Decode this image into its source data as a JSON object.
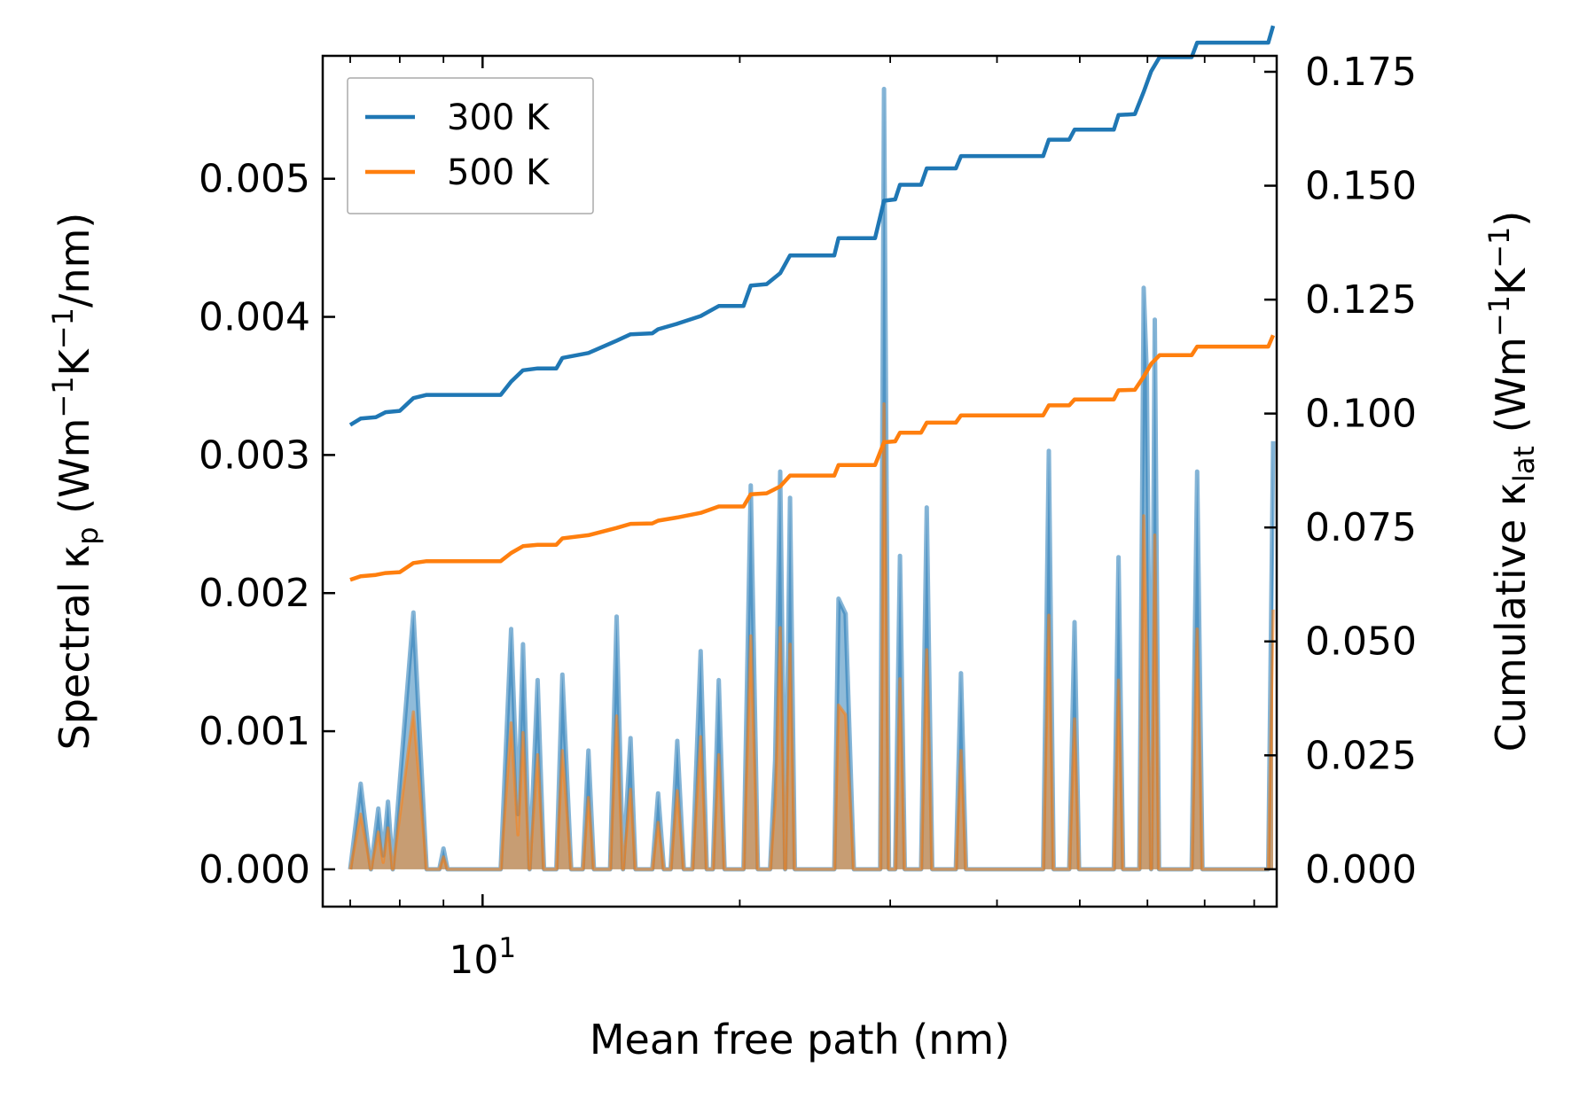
{
  "chart_data": {
    "type": "line",
    "xlabel": "Mean free path (nm)",
    "x_scale": "log",
    "xlim": [
      6.5,
      85
    ],
    "x_tick_labels": [
      {
        "value": 10,
        "base": "10",
        "exp": "1"
      }
    ],
    "y_left": {
      "label_parts": [
        "Spectral κ",
        "p",
        " (Wm",
        "−1",
        "K",
        "−1",
        "/nm)"
      ],
      "ylim": [
        -0.00027,
        0.00589
      ],
      "ticks": [
        "0.000",
        "0.001",
        "0.002",
        "0.003",
        "0.004",
        "0.005"
      ],
      "tick_values": [
        0,
        0.001,
        0.002,
        0.003,
        0.004,
        0.005
      ]
    },
    "y_right": {
      "label_parts": [
        "Cumulative κ",
        "lat",
        " (Wm",
        "−1",
        "K",
        "−1",
        ")"
      ],
      "ylim": [
        -0.0082,
        0.1785
      ],
      "ticks": [
        "0.000",
        "0.025",
        "0.050",
        "0.075",
        "0.100",
        "0.125",
        "0.150",
        "0.175"
      ],
      "tick_values": [
        0,
        0.025,
        0.05,
        0.075,
        0.1,
        0.125,
        0.15,
        0.175
      ]
    },
    "legend": {
      "location": "top-left",
      "entries": [
        {
          "label": "300 K",
          "color": "#1f77b4"
        },
        {
          "label": "500 K",
          "color": "#ff7f0e"
        }
      ]
    },
    "spectral_300K": [
      [
        7.0,
        0
      ],
      [
        7.2,
        0.00062
      ],
      [
        7.4,
        0
      ],
      [
        7.55,
        0.00044
      ],
      [
        7.65,
        0.0001
      ],
      [
        7.75,
        0.00049
      ],
      [
        7.85,
        0
      ],
      [
        8.3,
        0.00186
      ],
      [
        8.6,
        0
      ],
      [
        8.9,
        0
      ],
      [
        9.0,
        0.00015
      ],
      [
        9.1,
        0
      ],
      [
        10.5,
        0
      ],
      [
        10.8,
        0.00174
      ],
      [
        11.0,
        0.0004
      ],
      [
        11.15,
        0.00163
      ],
      [
        11.35,
        0
      ],
      [
        11.6,
        0.00137
      ],
      [
        11.8,
        0
      ],
      [
        12.2,
        0
      ],
      [
        12.4,
        0.00141
      ],
      [
        12.7,
        0
      ],
      [
        13.1,
        0
      ],
      [
        13.3,
        0.00086
      ],
      [
        13.5,
        0
      ],
      [
        14.1,
        0
      ],
      [
        14.35,
        0.00183
      ],
      [
        14.6,
        0
      ],
      [
        14.9,
        0.00095
      ],
      [
        15.1,
        0
      ],
      [
        15.8,
        0
      ],
      [
        16.05,
        0.00055
      ],
      [
        16.3,
        0
      ],
      [
        16.6,
        0
      ],
      [
        16.9,
        0.00093
      ],
      [
        17.2,
        0
      ],
      [
        17.6,
        0
      ],
      [
        18.0,
        0.00158
      ],
      [
        18.3,
        0
      ],
      [
        18.6,
        0
      ],
      [
        18.9,
        0.00137
      ],
      [
        19.2,
        0
      ],
      [
        20.2,
        0
      ],
      [
        20.6,
        0.00278
      ],
      [
        21.0,
        0
      ],
      [
        21.7,
        0
      ],
      [
        22.0,
        0.00079
      ],
      [
        22.3,
        0.00288
      ],
      [
        22.6,
        0
      ],
      [
        22.9,
        0.00269
      ],
      [
        23.2,
        0
      ],
      [
        25.8,
        0
      ],
      [
        26.1,
        0.00196
      ],
      [
        26.6,
        0.00185
      ],
      [
        27.2,
        0
      ],
      [
        29.2,
        0
      ],
      [
        29.5,
        0.00565
      ],
      [
        29.9,
        0
      ],
      [
        30.4,
        0
      ],
      [
        30.8,
        0.00227
      ],
      [
        31.2,
        0
      ],
      [
        32.6,
        0
      ],
      [
        33.1,
        0.00262
      ],
      [
        33.6,
        0
      ],
      [
        35.8,
        0
      ],
      [
        36.3,
        0.00142
      ],
      [
        36.8,
        0
      ],
      [
        45.3,
        0
      ],
      [
        46.0,
        0.00303
      ],
      [
        46.6,
        0
      ],
      [
        48.6,
        0
      ],
      [
        49.3,
        0.00179
      ],
      [
        49.9,
        0
      ],
      [
        54.8,
        0
      ],
      [
        55.5,
        0.00226
      ],
      [
        56.2,
        0
      ],
      [
        58.7,
        0
      ],
      [
        59.4,
        0.00421
      ],
      [
        59.9,
        0.00358
      ],
      [
        60.6,
        0
      ],
      [
        61.2,
        0.00398
      ],
      [
        61.9,
        0
      ],
      [
        67.6,
        0
      ],
      [
        68.6,
        0.00288
      ],
      [
        69.6,
        0
      ],
      [
        83.1,
        0
      ],
      [
        84.2,
        0.0031
      ]
    ],
    "spectral_500K": [
      [
        7.0,
        0
      ],
      [
        7.2,
        0.0004
      ],
      [
        7.4,
        0
      ],
      [
        7.55,
        0.00027
      ],
      [
        7.65,
        5e-05
      ],
      [
        7.75,
        0.0003
      ],
      [
        7.85,
        0
      ],
      [
        8.3,
        0.00114
      ],
      [
        8.6,
        0
      ],
      [
        8.9,
        0
      ],
      [
        9.0,
        9e-05
      ],
      [
        9.1,
        0
      ],
      [
        10.5,
        0
      ],
      [
        10.8,
        0.00106
      ],
      [
        11.0,
        0.00025
      ],
      [
        11.15,
        0.00099
      ],
      [
        11.35,
        0
      ],
      [
        11.6,
        0.00083
      ],
      [
        11.8,
        0
      ],
      [
        12.2,
        0
      ],
      [
        12.4,
        0.00086
      ],
      [
        12.7,
        0
      ],
      [
        13.1,
        0
      ],
      [
        13.3,
        0.00052
      ],
      [
        13.5,
        0
      ],
      [
        14.1,
        0
      ],
      [
        14.35,
        0.00111
      ],
      [
        14.6,
        0
      ],
      [
        14.9,
        0.00058
      ],
      [
        15.1,
        0
      ],
      [
        15.8,
        0
      ],
      [
        16.05,
        0.00034
      ],
      [
        16.3,
        0
      ],
      [
        16.6,
        0
      ],
      [
        16.9,
        0.00057
      ],
      [
        17.2,
        0
      ],
      [
        17.6,
        0
      ],
      [
        18.0,
        0.00096
      ],
      [
        18.3,
        0
      ],
      [
        18.6,
        0
      ],
      [
        18.9,
        0.00083
      ],
      [
        19.2,
        0
      ],
      [
        20.2,
        0
      ],
      [
        20.6,
        0.00169
      ],
      [
        21.0,
        0
      ],
      [
        21.7,
        0
      ],
      [
        22.0,
        0.00048
      ],
      [
        22.3,
        0.00175
      ],
      [
        22.6,
        0
      ],
      [
        22.9,
        0.00163
      ],
      [
        23.2,
        0
      ],
      [
        25.8,
        0
      ],
      [
        26.1,
        0.00119
      ],
      [
        26.6,
        0.00112
      ],
      [
        27.2,
        0
      ],
      [
        29.2,
        0
      ],
      [
        29.5,
        0.00337
      ],
      [
        29.9,
        0
      ],
      [
        30.4,
        0
      ],
      [
        30.8,
        0.00138
      ],
      [
        31.2,
        0
      ],
      [
        32.6,
        0
      ],
      [
        33.1,
        0.00159
      ],
      [
        33.6,
        0
      ],
      [
        35.8,
        0
      ],
      [
        36.3,
        0.00086
      ],
      [
        36.8,
        0
      ],
      [
        45.3,
        0
      ],
      [
        46.0,
        0.00184
      ],
      [
        46.6,
        0
      ],
      [
        48.6,
        0
      ],
      [
        49.3,
        0.00109
      ],
      [
        49.9,
        0
      ],
      [
        54.8,
        0
      ],
      [
        55.5,
        0.00137
      ],
      [
        56.2,
        0
      ],
      [
        58.7,
        0
      ],
      [
        59.4,
        0.00256
      ],
      [
        59.9,
        0.00152
      ],
      [
        60.6,
        0
      ],
      [
        61.2,
        0.00242
      ],
      [
        61.9,
        0
      ],
      [
        67.6,
        0
      ],
      [
        68.6,
        0.00174
      ],
      [
        69.6,
        0
      ],
      [
        83.1,
        0
      ],
      [
        84.2,
        0.00188
      ]
    ],
    "cumulative_300K": [
      [
        7.0,
        0.0975
      ],
      [
        7.2,
        0.0989
      ],
      [
        7.5,
        0.0992
      ],
      [
        7.7,
        0.1003
      ],
      [
        8.0,
        0.1006
      ],
      [
        8.3,
        0.1034
      ],
      [
        8.6,
        0.1041
      ],
      [
        9.3,
        0.1041
      ],
      [
        10.5,
        0.1041
      ],
      [
        10.8,
        0.107
      ],
      [
        11.15,
        0.1095
      ],
      [
        11.6,
        0.1099
      ],
      [
        12.2,
        0.1099
      ],
      [
        12.4,
        0.1122
      ],
      [
        13.3,
        0.1133
      ],
      [
        14.35,
        0.116
      ],
      [
        14.9,
        0.1174
      ],
      [
        15.8,
        0.1176
      ],
      [
        16.05,
        0.1185
      ],
      [
        16.9,
        0.1197
      ],
      [
        18.0,
        0.1214
      ],
      [
        18.9,
        0.1236
      ],
      [
        20.2,
        0.1236
      ],
      [
        20.6,
        0.1281
      ],
      [
        21.5,
        0.1284
      ],
      [
        22.3,
        0.1308
      ],
      [
        22.9,
        0.1347
      ],
      [
        25.8,
        0.1347
      ],
      [
        26.1,
        0.1385
      ],
      [
        28.8,
        0.1385
      ],
      [
        29.5,
        0.1467
      ],
      [
        30.4,
        0.147
      ],
      [
        30.8,
        0.1502
      ],
      [
        32.6,
        0.1502
      ],
      [
        33.1,
        0.1538
      ],
      [
        35.8,
        0.1538
      ],
      [
        36.3,
        0.1565
      ],
      [
        45.3,
        0.1565
      ],
      [
        46.0,
        0.1601
      ],
      [
        48.6,
        0.1601
      ],
      [
        49.3,
        0.1623
      ],
      [
        54.8,
        0.1623
      ],
      [
        55.5,
        0.1655
      ],
      [
        58.0,
        0.1657
      ],
      [
        59.4,
        0.1706
      ],
      [
        60.6,
        0.1751
      ],
      [
        62.0,
        0.1782
      ],
      [
        67.6,
        0.1782
      ],
      [
        68.6,
        0.1814
      ],
      [
        83.1,
        0.1814
      ],
      [
        84.2,
        0.1851
      ]
    ],
    "cumulative_500K": [
      [
        7.0,
        0.0635
      ],
      [
        7.2,
        0.0643
      ],
      [
        7.5,
        0.0646
      ],
      [
        7.7,
        0.065
      ],
      [
        8.0,
        0.0652
      ],
      [
        8.3,
        0.0672
      ],
      [
        8.6,
        0.0676
      ],
      [
        9.3,
        0.0676
      ],
      [
        10.5,
        0.0676
      ],
      [
        10.8,
        0.0694
      ],
      [
        11.15,
        0.0709
      ],
      [
        11.6,
        0.0712
      ],
      [
        12.2,
        0.0712
      ],
      [
        12.4,
        0.0726
      ],
      [
        13.3,
        0.0733
      ],
      [
        14.35,
        0.0749
      ],
      [
        14.9,
        0.0758
      ],
      [
        15.8,
        0.0759
      ],
      [
        16.05,
        0.0765
      ],
      [
        16.9,
        0.0772
      ],
      [
        18.0,
        0.0782
      ],
      [
        18.9,
        0.0796
      ],
      [
        20.2,
        0.0796
      ],
      [
        20.6,
        0.0823
      ],
      [
        21.5,
        0.0825
      ],
      [
        22.3,
        0.084
      ],
      [
        22.9,
        0.0864
      ],
      [
        25.8,
        0.0864
      ],
      [
        26.1,
        0.0887
      ],
      [
        28.8,
        0.0887
      ],
      [
        29.5,
        0.0937
      ],
      [
        30.4,
        0.0939
      ],
      [
        30.8,
        0.0958
      ],
      [
        32.6,
        0.0958
      ],
      [
        33.1,
        0.098
      ],
      [
        35.8,
        0.098
      ],
      [
        36.3,
        0.0996
      ],
      [
        45.3,
        0.0996
      ],
      [
        46.0,
        0.1018
      ],
      [
        48.6,
        0.1018
      ],
      [
        49.3,
        0.1031
      ],
      [
        54.8,
        0.1031
      ],
      [
        55.5,
        0.1051
      ],
      [
        58.0,
        0.1052
      ],
      [
        59.4,
        0.1081
      ],
      [
        60.6,
        0.1109
      ],
      [
        62.0,
        0.1128
      ],
      [
        67.6,
        0.1128
      ],
      [
        68.6,
        0.1147
      ],
      [
        83.1,
        0.1147
      ],
      [
        84.2,
        0.1172
      ]
    ]
  }
}
